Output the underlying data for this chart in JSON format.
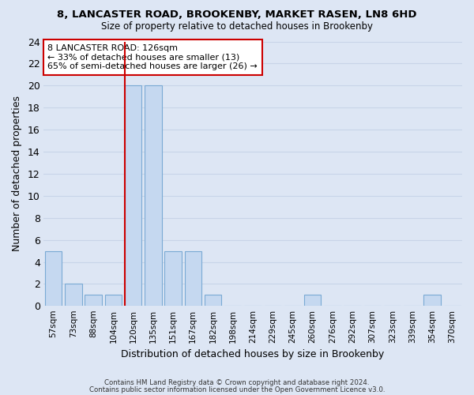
{
  "title1": "8, LANCASTER ROAD, BROOKENBY, MARKET RASEN, LN8 6HD",
  "title2": "Size of property relative to detached houses in Brookenby",
  "xlabel": "Distribution of detached houses by size in Brookenby",
  "ylabel": "Number of detached properties",
  "categories": [
    "57sqm",
    "73sqm",
    "88sqm",
    "104sqm",
    "120sqm",
    "135sqm",
    "151sqm",
    "167sqm",
    "182sqm",
    "198sqm",
    "214sqm",
    "229sqm",
    "245sqm",
    "260sqm",
    "276sqm",
    "292sqm",
    "307sqm",
    "323sqm",
    "339sqm",
    "354sqm",
    "370sqm"
  ],
  "values": [
    5,
    2,
    1,
    1,
    20,
    20,
    5,
    5,
    1,
    0,
    0,
    0,
    0,
    1,
    0,
    0,
    0,
    0,
    0,
    1,
    0
  ],
  "bar_color": "#c5d8f0",
  "bar_edge_color": "#7aaad4",
  "highlight_index": 4,
  "highlight_line_color": "#cc0000",
  "ylim": [
    0,
    24
  ],
  "yticks": [
    0,
    2,
    4,
    6,
    8,
    10,
    12,
    14,
    16,
    18,
    20,
    22,
    24
  ],
  "annotation_box_text": [
    "8 LANCASTER ROAD: 126sqm",
    "← 33% of detached houses are smaller (13)",
    "65% of semi-detached houses are larger (26) →"
  ],
  "annotation_box_color": "#ffffff",
  "annotation_box_edge_color": "#cc0000",
  "grid_color": "#c8d4e8",
  "bg_color": "#dde6f4",
  "footer1": "Contains HM Land Registry data © Crown copyright and database right 2024.",
  "footer2": "Contains public sector information licensed under the Open Government Licence v3.0."
}
